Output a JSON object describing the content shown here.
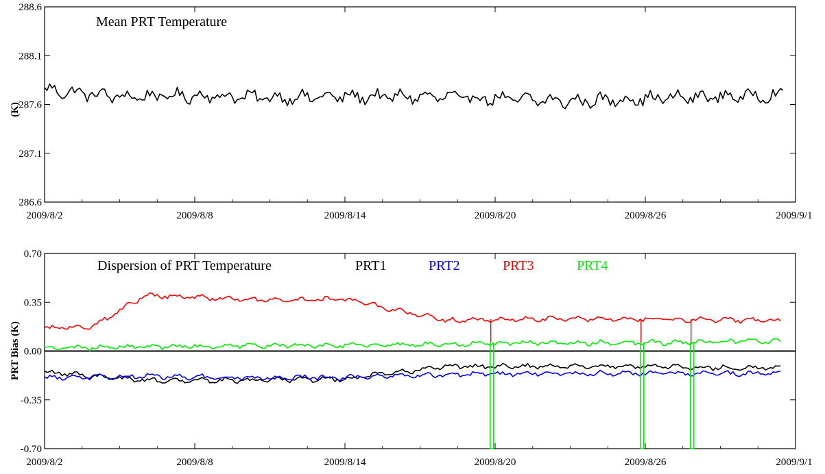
{
  "chart_data": [
    {
      "type": "line",
      "title": "Mean PRT Temperature",
      "ylabel": "(K)",
      "xlabel": "",
      "x_range": [
        "2009/8/2",
        "2009/9/1"
      ],
      "x_ticks": [
        "2009/8/2",
        "2009/8/8",
        "2009/8/14",
        "2009/8/20",
        "2009/8/26",
        "2009/9/1"
      ],
      "ylim": [
        286.6,
        288.6
      ],
      "y_ticks": [
        "288.6",
        "288.1",
        "287.6",
        "287.1",
        "286.6"
      ],
      "series": [
        {
          "color": "#000000",
          "x": [
            "2009/8/2",
            "2009/8/5",
            "2009/8/8",
            "2009/8/11",
            "2009/8/14",
            "2009/8/17",
            "2009/8/20",
            "2009/8/23",
            "2009/8/26",
            "2009/8/29",
            "2009/9/1"
          ],
          "values": [
            287.75,
            287.68,
            287.69,
            287.67,
            287.68,
            287.68,
            287.66,
            287.63,
            287.66,
            287.68,
            287.7
          ]
        }
      ]
    },
    {
      "type": "line",
      "title": "Dispersion of PRT Temperature",
      "ylabel": "PRT Bias (K)",
      "xlabel": "",
      "x_range": [
        "2009/8/2",
        "2009/9/1"
      ],
      "x_ticks": [
        "2009/8/2",
        "2009/8/8",
        "2009/8/14",
        "2009/8/20",
        "2009/8/26",
        "2009/9/1"
      ],
      "ylim": [
        -0.7,
        0.7
      ],
      "y_ticks": [
        "0.70",
        "0.35",
        "0.00",
        "-0.35",
        "-0.70"
      ],
      "reference_line": 0.0,
      "series": [
        {
          "name": "PRT1",
          "color": "#000000",
          "x": [
            "2009/8/2",
            "2009/8/6",
            "2009/8/10",
            "2009/8/14",
            "2009/8/18",
            "2009/8/22",
            "2009/8/26",
            "2009/8/30"
          ],
          "values": [
            -0.15,
            -0.21,
            -0.21,
            -0.2,
            -0.11,
            -0.11,
            -0.11,
            -0.12
          ]
        },
        {
          "name": "PRT2",
          "color": "#0000ff",
          "x": [
            "2009/8/2",
            "2009/8/6",
            "2009/8/10",
            "2009/8/14",
            "2009/8/18",
            "2009/8/22",
            "2009/8/26",
            "2009/8/30"
          ],
          "values": [
            -0.19,
            -0.18,
            -0.19,
            -0.19,
            -0.17,
            -0.16,
            -0.16,
            -0.16
          ]
        },
        {
          "name": "PRT3",
          "color": "#ff0000",
          "x": [
            "2009/8/2",
            "2009/8/4",
            "2009/8/6",
            "2009/8/10",
            "2009/8/14",
            "2009/8/18",
            "2009/8/22",
            "2009/8/26",
            "2009/8/30"
          ],
          "values": [
            0.16,
            0.18,
            0.4,
            0.37,
            0.37,
            0.22,
            0.23,
            0.23,
            0.22
          ]
        },
        {
          "name": "PRT4",
          "color": "#00ee00",
          "x": [
            "2009/8/2",
            "2009/8/6",
            "2009/8/10",
            "2009/8/14",
            "2009/8/18",
            "2009/8/22",
            "2009/8/26",
            "2009/8/30"
          ],
          "values": [
            0.02,
            0.03,
            0.04,
            0.04,
            0.05,
            0.06,
            0.06,
            0.07
          ]
        }
      ],
      "annotations": [
        "PRT4 drops to -0.70 near 2009/8/19, 2009/8/25 and 2009/8/27"
      ]
    }
  ]
}
